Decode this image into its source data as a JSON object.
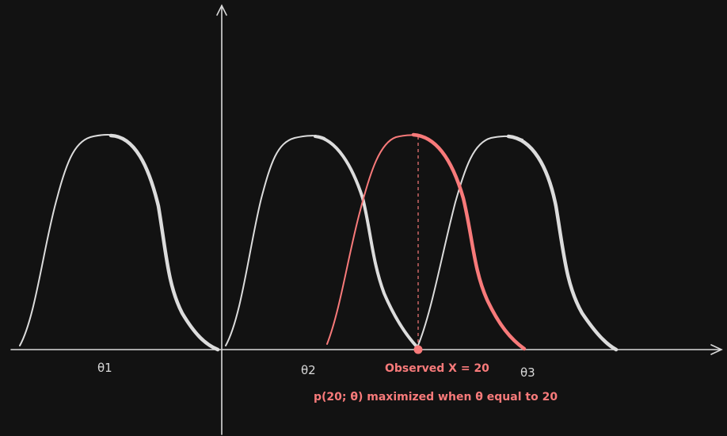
{
  "labels": {
    "theta1": "θ1",
    "theta2": "θ2",
    "theta3": "θ3",
    "observed": "Observed X = 20",
    "caption": "p(20; θ) maximized when θ equal to 20"
  },
  "colors": {
    "background": "#121212",
    "curve": "#dcdcdc",
    "highlight": "#f87a7a",
    "axis": "#d9d9d9"
  },
  "curves": [
    {
      "name": "theta1-curve",
      "highlighted": false
    },
    {
      "name": "theta2-curve",
      "highlighted": false
    },
    {
      "name": "mle-curve",
      "highlighted": true
    },
    {
      "name": "theta3-curve",
      "highlighted": false
    }
  ]
}
